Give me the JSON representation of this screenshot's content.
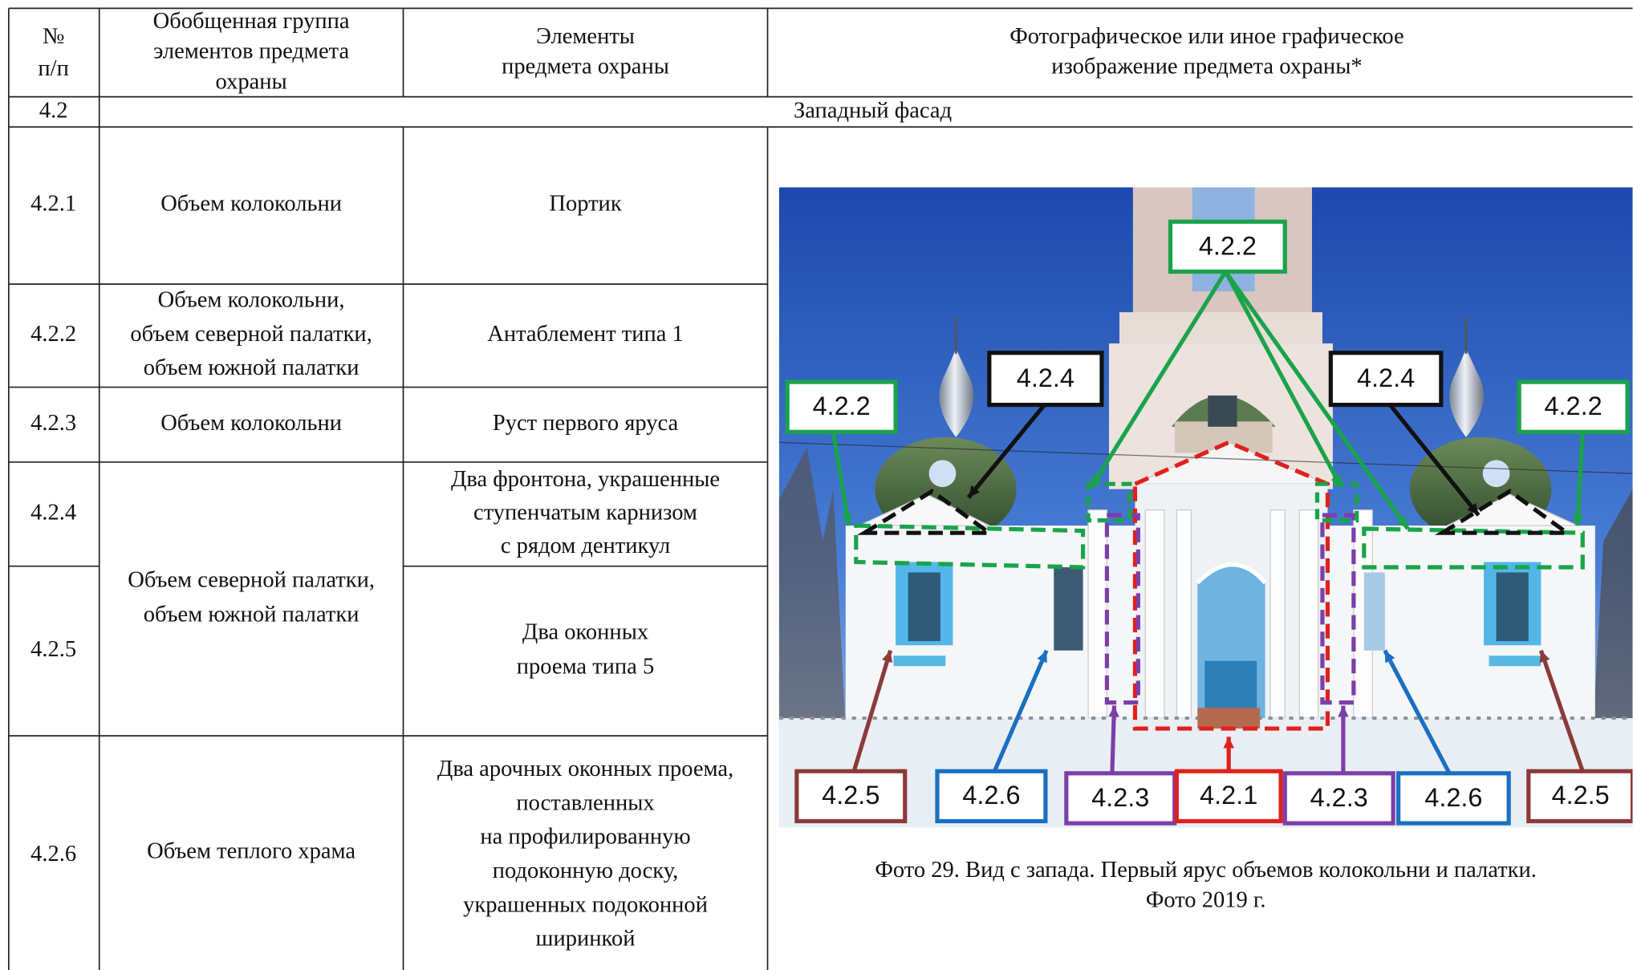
{
  "header": {
    "number": [
      "№",
      "п/п"
    ],
    "group": [
      "Обобщенная группа",
      "элементов предмета",
      "охраны"
    ],
    "elements": [
      "Элементы",
      "предмета охраны"
    ],
    "image": [
      "Фотографическое или иное графическое",
      "изображение предмета охраны*"
    ]
  },
  "section": {
    "number": "4.2",
    "title": "Западный фасад"
  },
  "rows": [
    {
      "number": "4.2.1",
      "group": [
        "Объем колокольни"
      ],
      "elements": [
        "Портик"
      ]
    },
    {
      "number": "4.2.2",
      "group": [
        "Объем колокольни,",
        "объем северной палатки,",
        "объем южной палатки"
      ],
      "elements": [
        "Антаблемент типа 1"
      ]
    },
    {
      "number": "4.2.3",
      "group": [
        "Объем колокольни"
      ],
      "elements": [
        "Руст первого яруса"
      ]
    },
    {
      "number": "4.2.4",
      "group": [
        "Объем северной палатки,",
        "объем южной палатки"
      ],
      "elements": [
        "Два фронтона, украшенные",
        "ступенчатым карнизом",
        "с рядом дентикул"
      ]
    },
    {
      "number": "4.2.5",
      "elements": [
        "Два оконных",
        "проема типа 5"
      ]
    },
    {
      "number": "4.2.6",
      "group": [
        "Объем теплого храма"
      ],
      "elements": [
        "Два арочных оконных проема,",
        "поставленных",
        "на профилированную",
        "подоконную доску,",
        "украшенных подоконной",
        "ширинкой"
      ]
    }
  ],
  "photo": {
    "labels": [
      "4.2.2",
      "4.2.4",
      "4.2.4",
      "4.2.2",
      "4.2.2",
      "4.2.5",
      "4.2.6",
      "4.2.3",
      "4.2.1",
      "4.2.3",
      "4.2.6",
      "4.2.5"
    ],
    "caption": [
      "Фото 29. Вид с запада. Первый ярус объемов колокольни и палатки.",
      "Фото 2019 г."
    ]
  }
}
